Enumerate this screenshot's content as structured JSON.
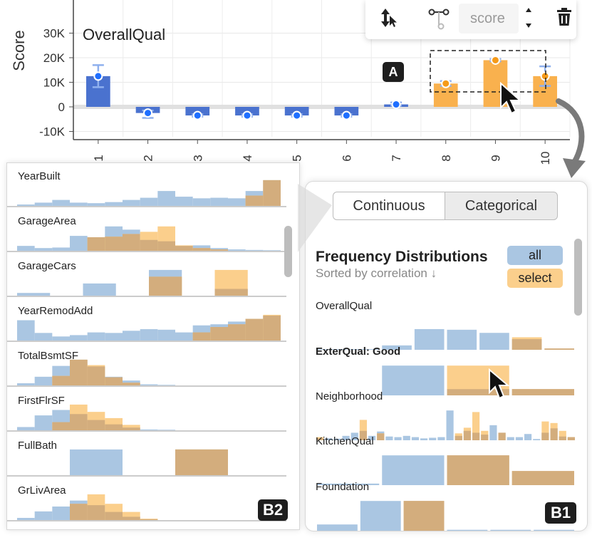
{
  "colors": {
    "all": "#aac6e2",
    "select": "#fbcf8c",
    "overlap": "#d3ad7d",
    "bar_blue": "#4a72cf",
    "bar_orange": "#f9b14e",
    "dot_blue": "#1f6fff",
    "dot_orange": "#f59a19"
  },
  "chart": {
    "title": "OverallQual",
    "ylabel": "Score",
    "yticks": [
      "30K",
      "20K",
      "10K",
      "0",
      "-10K"
    ],
    "callout": "A"
  },
  "chart_data": {
    "type": "bar",
    "title": "OverallQual",
    "ylabel": "Score",
    "categories": [
      "1",
      "2",
      "3",
      "4",
      "5",
      "6",
      "7",
      "8",
      "9",
      "10"
    ],
    "values": [
      12500,
      -2500,
      -3500,
      -3500,
      -3500,
      -3500,
      1000,
      9500,
      19000,
      12500
    ],
    "error_low": [
      8000,
      -4500,
      -4000,
      -4000,
      -4000,
      -4000,
      500,
      8500,
      18500,
      8500
    ],
    "error_high": [
      17000,
      -1500,
      -3000,
      -3000,
      -3000,
      -3000,
      1800,
      10500,
      19500,
      16500
    ],
    "selected": [
      false,
      false,
      false,
      false,
      false,
      false,
      false,
      true,
      true,
      true
    ],
    "ylim": [
      -12000,
      32000
    ]
  },
  "toolbar": {
    "sort_icon": "sort-cursor-icon",
    "connect_icon": "node-link-icon",
    "score_placeholder": "score",
    "trash_icon": "trash-icon"
  },
  "panel_b1": {
    "tab_continuous": "Continuous",
    "tab_categorical": "Categorical",
    "title": "Frequency Distributions",
    "subtitle": "Sorted by correlation ↓",
    "legend_all": "all",
    "legend_select": "select",
    "badge": "B1",
    "features": [
      {
        "name": "OverallQual",
        "all": [
          0.02,
          0.02,
          0.14,
          0.66,
          0.64,
          0.54,
          0.34,
          0.04
        ],
        "sel": [
          0,
          0,
          0,
          0,
          0,
          0,
          0.4,
          0.04
        ]
      },
      {
        "name": "ExterQual: Good",
        "all": [
          0.0,
          0.95,
          0.2,
          0.2
        ],
        "sel": [
          0.0,
          0.0,
          0.95,
          0.2
        ]
      },
      {
        "name": "Neighborhood",
        "all": [
          0.06,
          0.06,
          0.05,
          0.14,
          0.24,
          0.3,
          0.14,
          0.28,
          0.12,
          0.1,
          0.14,
          0.1,
          0.06,
          0.08,
          0.1,
          0.95,
          0.14,
          0.3,
          0.24,
          0.18,
          0.48,
          0.24,
          0.1,
          0.1,
          0.2,
          0.04,
          0.24,
          0.38,
          0.12,
          0.1
        ],
        "sel": [
          0.1,
          0,
          0,
          0,
          0,
          0.65,
          0,
          0.22,
          0,
          0,
          0,
          0,
          0,
          0,
          0,
          0,
          0.22,
          0.4,
          0.9,
          0.3,
          0,
          0.24,
          0,
          0,
          0,
          0.0,
          0.6,
          0.55,
          0.3,
          0.1
        ]
      },
      {
        "name": "KitchenQual",
        "all": [
          0.05,
          0.95,
          0.95,
          0.45
        ],
        "sel": [
          0.0,
          0.0,
          0.95,
          0.45
        ]
      },
      {
        "name": "Foundation",
        "all": [
          0.2,
          0.95,
          0.95,
          0.03,
          0.03,
          0.03
        ],
        "sel": [
          0,
          0,
          0.95,
          0,
          0,
          0
        ]
      }
    ]
  },
  "panel_b2": {
    "badge": "B2",
    "features": [
      {
        "name": "YearBuilt",
        "all": [
          0.05,
          0.12,
          0.22,
          0.12,
          0.1,
          0.14,
          0.22,
          0.3,
          0.55,
          0.34,
          0.28,
          0.3,
          0.28,
          0.55,
          0.95
        ],
        "sel": [
          0,
          0,
          0,
          0,
          0,
          0,
          0,
          0,
          0,
          0,
          0,
          0,
          0,
          0.38,
          0.95
        ]
      },
      {
        "name": "GarageArea",
        "all": [
          0.18,
          0.1,
          0.12,
          0.55,
          0.5,
          0.9,
          0.78,
          0.4,
          0.35,
          0.18,
          0.2,
          0.1,
          0.05,
          0.03,
          0.02
        ],
        "sel": [
          0,
          0,
          0,
          0,
          0.5,
          0.52,
          0.62,
          0.7,
          0.9,
          0.2,
          0.1,
          0.05,
          0,
          0,
          0
        ]
      },
      {
        "name": "GarageCars",
        "all": [
          0.1,
          0,
          0.45,
          0,
          0.95,
          0,
          0.25,
          0
        ],
        "sel": [
          0,
          0,
          0,
          0,
          0.7,
          0,
          0.95,
          0
        ]
      },
      {
        "name": "YearRemodAdd",
        "all": [
          0.75,
          0.28,
          0.15,
          0.2,
          0.3,
          0.28,
          0.36,
          0.42,
          0.4,
          0.3,
          0.56,
          0.6,
          0.7,
          0.8,
          0.92
        ],
        "sel": [
          0,
          0,
          0,
          0,
          0,
          0,
          0,
          0,
          0,
          0,
          0.3,
          0.5,
          0.6,
          0.8,
          0.95
        ]
      },
      {
        "name": "TotalBsmtSF",
        "all": [
          0.08,
          0.32,
          0.72,
          0.95,
          0.7,
          0.32,
          0.18,
          0.04,
          0.02,
          0,
          0,
          0,
          0,
          0,
          0
        ],
        "sel": [
          0,
          0,
          0.35,
          0.95,
          0.75,
          0.3,
          0.1,
          0,
          0,
          0,
          0,
          0,
          0,
          0,
          0
        ]
      },
      {
        "name": "FirstFlrSF",
        "all": [
          0.12,
          0.55,
          0.75,
          0.6,
          0.38,
          0.22,
          0.1,
          0.03,
          0.02,
          0,
          0,
          0,
          0,
          0,
          0
        ],
        "sel": [
          0,
          0,
          0.3,
          0.95,
          0.68,
          0.45,
          0.2,
          0,
          0,
          0,
          0,
          0,
          0,
          0,
          0
        ]
      },
      {
        "name": "FullBath",
        "all": [
          0,
          0.95,
          0,
          0.95,
          0
        ],
        "sel": [
          0,
          0,
          0,
          0.95,
          0
        ]
      },
      {
        "name": "GrLivArea",
        "all": [
          0.08,
          0.32,
          0.5,
          0.72,
          0.55,
          0.3,
          0.12,
          0.03,
          0,
          0,
          0,
          0,
          0,
          0,
          0
        ],
        "sel": [
          0,
          0,
          0,
          0.6,
          0.95,
          0.6,
          0.3,
          0.05,
          0,
          0,
          0,
          0,
          0,
          0,
          0
        ]
      }
    ]
  }
}
